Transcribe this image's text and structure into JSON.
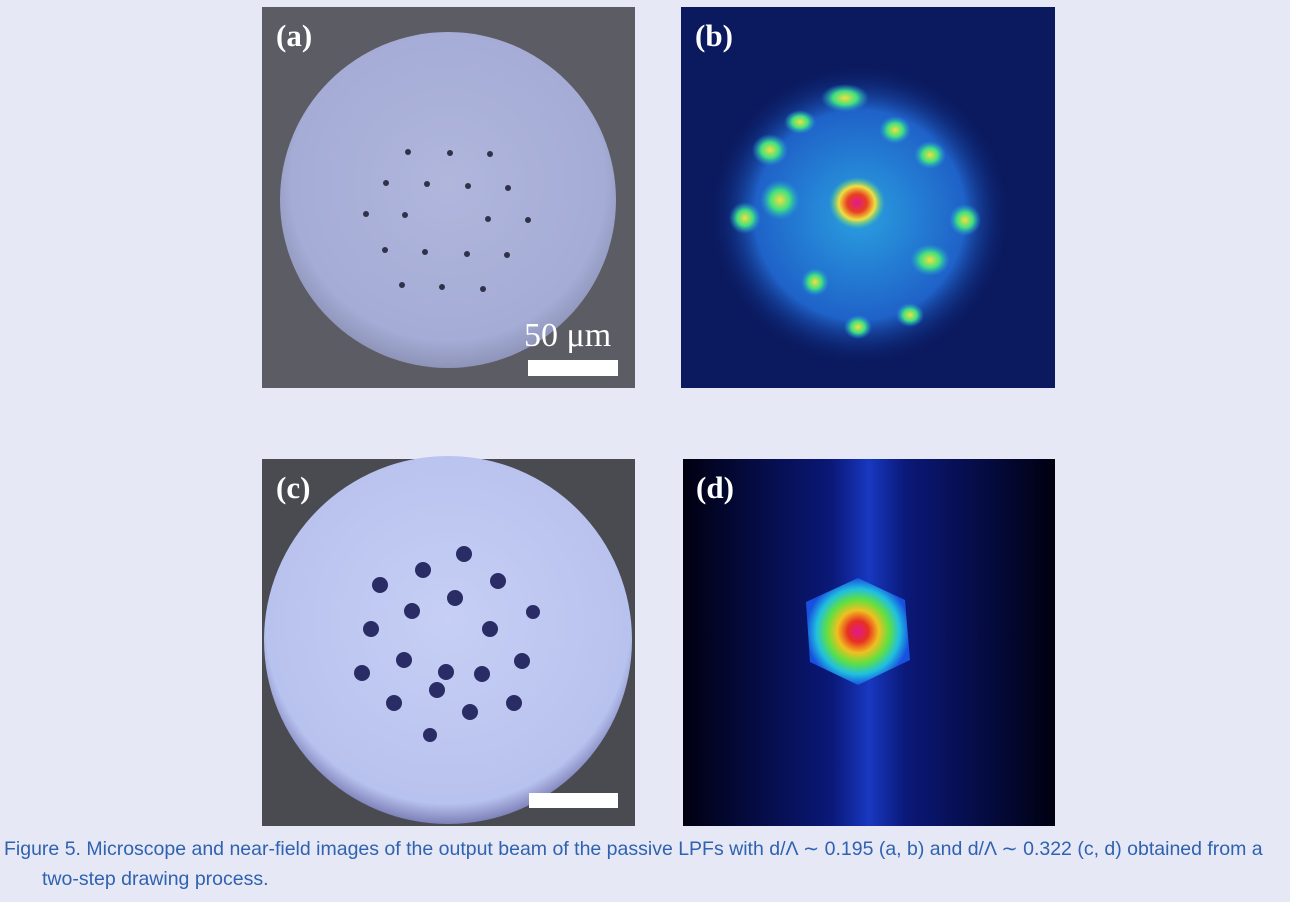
{
  "figure": {
    "panels": [
      {
        "label": "(a)",
        "scale_bar": "50 μm"
      },
      {
        "label": "(b)"
      },
      {
        "label": "(c)"
      },
      {
        "label": "(d)"
      }
    ],
    "caption": "Figure 5. Microscope and near-field images of the output beam of the passive LPFs with d/Λ ∼ 0.195 (a, b) and d/Λ ∼ 0.322 (c, d) obtained from a two-step drawing process."
  }
}
